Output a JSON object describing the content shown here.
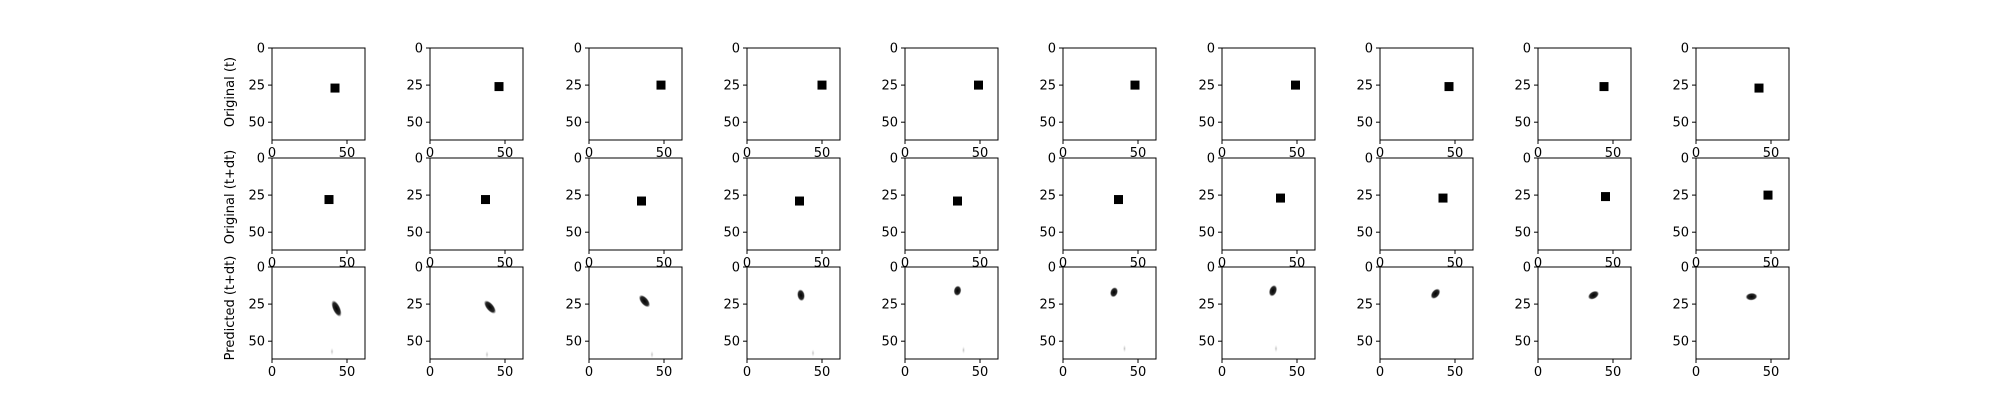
{
  "chart_data": {
    "type": "image_grid",
    "layout": {
      "rows": 3,
      "cols": 10
    },
    "image_extent": [
      0,
      62
    ],
    "x_ticks": [
      "0",
      "50"
    ],
    "y_ticks": [
      "0",
      "25",
      "50"
    ],
    "x_tick_values": [
      0,
      50
    ],
    "y_tick_values": [
      0,
      25,
      50
    ],
    "grid": false,
    "row_labels": [
      "Original (t)",
      "Original (t+dt)",
      "Predicted (t+dt)"
    ],
    "original_t_squares": [
      {
        "x": 42,
        "y": 27
      },
      {
        "x": 46,
        "y": 26
      },
      {
        "x": 48,
        "y": 25
      },
      {
        "x": 50,
        "y": 25
      },
      {
        "x": 49,
        "y": 25
      },
      {
        "x": 48,
        "y": 25
      },
      {
        "x": 49,
        "y": 25
      },
      {
        "x": 46,
        "y": 26
      },
      {
        "x": 44,
        "y": 26
      },
      {
        "x": 42,
        "y": 27
      }
    ],
    "original_t_dt_squares": [
      {
        "x": 38,
        "y": 28
      },
      {
        "x": 37,
        "y": 28
      },
      {
        "x": 35,
        "y": 29
      },
      {
        "x": 35,
        "y": 29
      },
      {
        "x": 35,
        "y": 29
      },
      {
        "x": 37,
        "y": 28
      },
      {
        "x": 39,
        "y": 27
      },
      {
        "x": 42,
        "y": 27
      },
      {
        "x": 45,
        "y": 26
      },
      {
        "x": 48,
        "y": 25
      }
    ],
    "predicted_blobs": [
      {
        "x": 43,
        "y": 28,
        "angle": -25,
        "len": 12,
        "faint": {
          "x": 40,
          "y": 57
        }
      },
      {
        "x": 40,
        "y": 27,
        "angle": -40,
        "len": 11,
        "faint": {
          "x": 38,
          "y": 59
        }
      },
      {
        "x": 37,
        "y": 23,
        "angle": -40,
        "len": 10,
        "faint": {
          "x": 42,
          "y": 59
        }
      },
      {
        "x": 36,
        "y": 19,
        "angle": -10,
        "len": 8,
        "faint": {
          "x": 44,
          "y": 58
        }
      },
      {
        "x": 35,
        "y": 16,
        "angle": 10,
        "len": 7,
        "faint": {
          "x": 39,
          "y": 56
        }
      },
      {
        "x": 34,
        "y": 17,
        "angle": 20,
        "len": 7,
        "faint": {
          "x": 41,
          "y": 55
        }
      },
      {
        "x": 34,
        "y": 16,
        "angle": 20,
        "len": 8,
        "faint": {
          "x": 36,
          "y": 55
        }
      },
      {
        "x": 37,
        "y": 18,
        "angle": 40,
        "len": 8,
        "faint": null
      },
      {
        "x": 37,
        "y": 19,
        "angle": 60,
        "len": 8,
        "faint": null
      },
      {
        "x": 37,
        "y": 20,
        "angle": 85,
        "len": 8,
        "faint": null
      }
    ]
  }
}
